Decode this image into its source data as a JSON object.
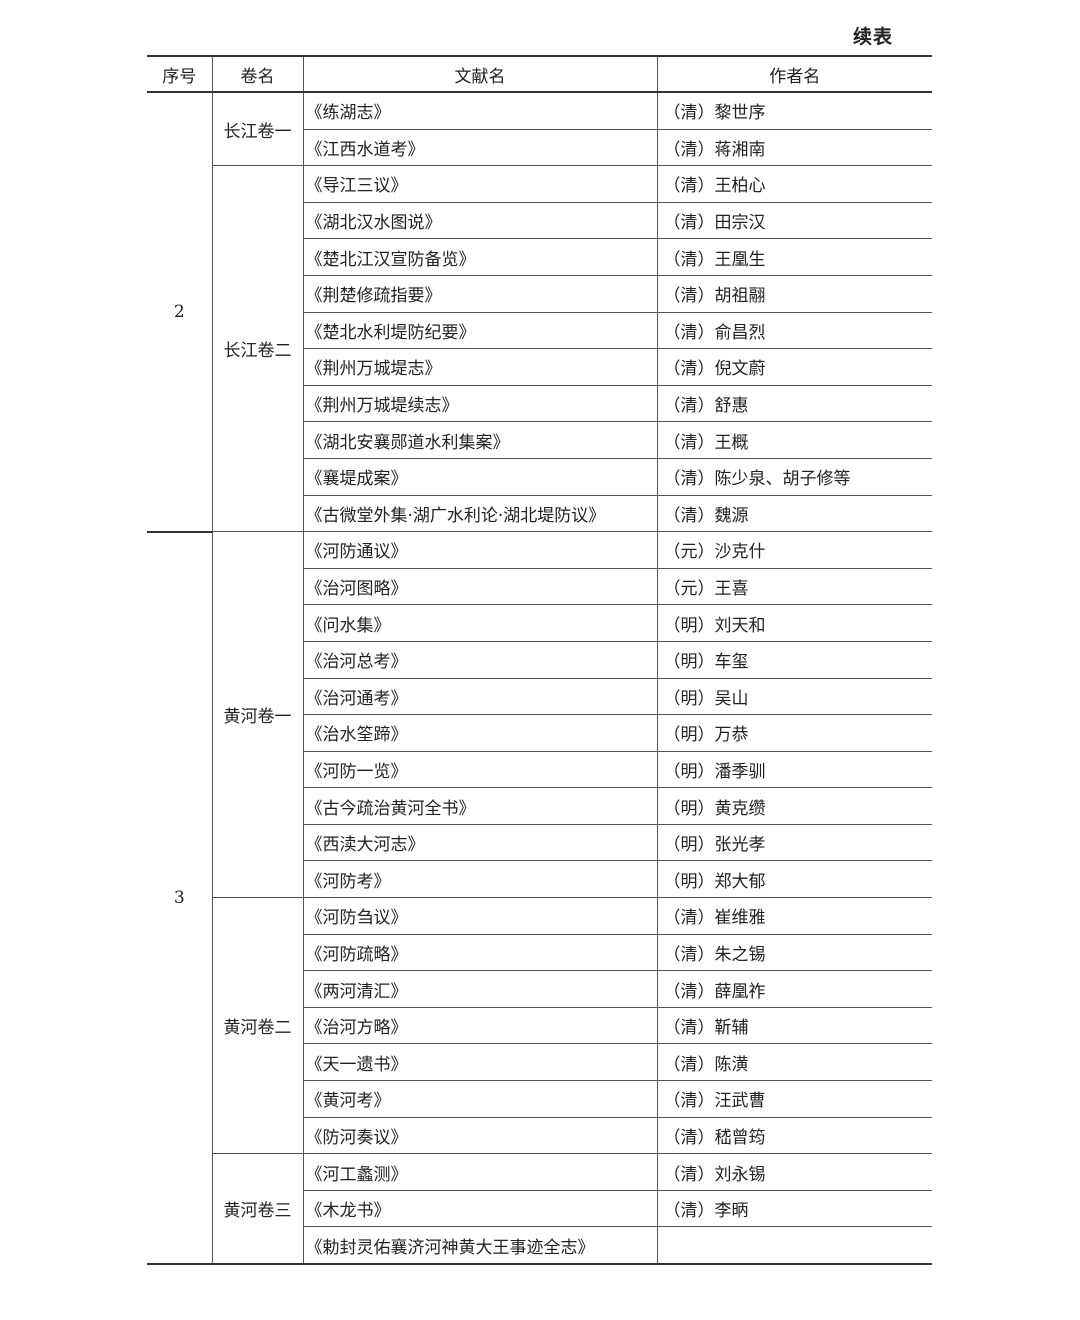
{
  "title": "续表",
  "headers": [
    "序号",
    "卷名",
    "文献名",
    "作者名"
  ],
  "groups": [
    {
      "seq": "2",
      "volumes": [
        {
          "name": "长江卷一",
          "rows": [
            {
              "doc": "《练湖志》",
              "author": "（清）黎世序"
            },
            {
              "doc": "《江西水道考》",
              "author": "（清）蒋湘南"
            }
          ]
        },
        {
          "name": "长江卷二",
          "rows": [
            {
              "doc": "《导江三议》",
              "author": "（清）王柏心"
            },
            {
              "doc": "《湖北汉水图说》",
              "author": "（清）田宗汉"
            },
            {
              "doc": "《楚北江汉宣防备览》",
              "author": "（清）王凰生"
            },
            {
              "doc": "《荆楚修疏指要》",
              "author": "（清）胡祖翮"
            },
            {
              "doc": "《楚北水利堤防纪要》",
              "author": "（清）俞昌烈"
            },
            {
              "doc": "《荆州万城堤志》",
              "author": "（清）倪文蔚"
            },
            {
              "doc": "《荆州万城堤续志》",
              "author": "（清）舒惠"
            },
            {
              "doc": "《湖北安襄郧道水利集案》",
              "author": "（清）王概"
            },
            {
              "doc": "《襄堤成案》",
              "author": "（清）陈少泉、胡子修等"
            },
            {
              "doc": "《古微堂外集·湖广水利论·湖北堤防议》",
              "author": "（清）魏源"
            }
          ]
        }
      ]
    },
    {
      "seq": "3",
      "volumes": [
        {
          "name": "黄河卷一",
          "rows": [
            {
              "doc": "《河防通议》",
              "author": "（元）沙克什"
            },
            {
              "doc": "《治河图略》",
              "author": "（元）王喜"
            },
            {
              "doc": "《问水集》",
              "author": "（明）刘天和"
            },
            {
              "doc": "《治河总考》",
              "author": "（明）车玺"
            },
            {
              "doc": "《治河通考》",
              "author": "（明）吴山"
            },
            {
              "doc": "《治水筌蹄》",
              "author": "（明）万恭"
            },
            {
              "doc": "《河防一览》",
              "author": "（明）潘季驯"
            },
            {
              "doc": "《古今疏治黄河全书》",
              "author": "（明）黄克缵"
            },
            {
              "doc": "《西渎大河志》",
              "author": "（明）张光孝"
            },
            {
              "doc": "《河防考》",
              "author": "（明）郑大郁"
            }
          ]
        },
        {
          "name": "黄河卷二",
          "rows": [
            {
              "doc": "《河防刍议》",
              "author": "（清）崔维雅"
            },
            {
              "doc": "《河防疏略》",
              "author": "（清）朱之锡"
            },
            {
              "doc": "《两河清汇》",
              "author": "（清）薛凰祚"
            },
            {
              "doc": "《治河方略》",
              "author": "（清）靳辅"
            },
            {
              "doc": "《天一遗书》",
              "author": "（清）陈潢"
            },
            {
              "doc": "《黄河考》",
              "author": "（清）汪武曹"
            },
            {
              "doc": "《防河奏议》",
              "author": "（清）嵇曾筠"
            }
          ]
        },
        {
          "name": "黄河卷三",
          "rows": [
            {
              "doc": "《河工蠡测》",
              "author": "（清）刘永锡"
            },
            {
              "doc": "《木龙书》",
              "author": "（清）李昞"
            },
            {
              "doc": "《勅封灵佑襄济河神黄大王事迹全志》",
              "author": ""
            }
          ]
        }
      ]
    }
  ]
}
